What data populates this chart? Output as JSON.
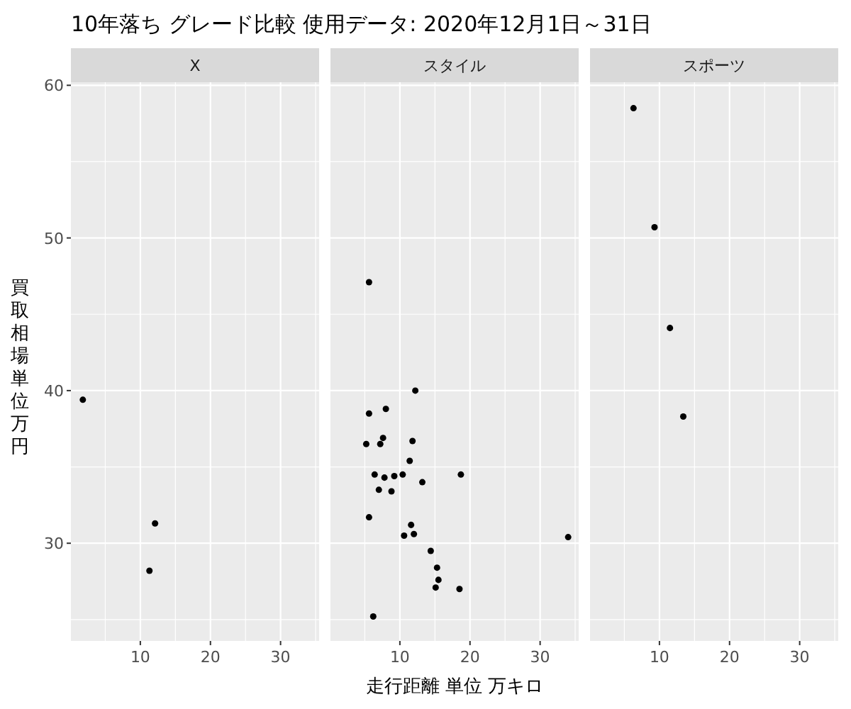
{
  "chart_data": [
    {
      "type": "scatter",
      "title": "10年落ち グレード比較 使用データ: 2020年12月1日～31日",
      "subtitle": "X",
      "ylabel": "買取相場単位万円",
      "x": [
        1.8,
        12.1,
        11.3
      ],
      "values": [
        39.4,
        31.3,
        28.2
      ],
      "color": "#000000",
      "xlim": [
        0.1,
        35.5
      ],
      "ylim": [
        23.6,
        60.2
      ],
      "xticks": [
        10,
        20,
        30
      ],
      "yticks": [
        30,
        40,
        50,
        60
      ],
      "grid": true,
      "marker": "circle"
    },
    {
      "type": "scatter",
      "subtitle": "スタイル",
      "xlabel": "走行距離 単位 万キロ",
      "x": [
        5.6,
        12.2,
        5.6,
        8.0,
        7.6,
        5.2,
        7.2,
        11.8,
        11.4,
        6.4,
        7.8,
        9.2,
        10.4,
        18.7,
        13.2,
        7.0,
        8.8,
        5.6,
        11.6,
        10.6,
        12.0,
        34.0,
        14.4,
        15.3,
        15.5,
        15.1,
        18.5,
        6.2
      ],
      "values": [
        47.1,
        40.0,
        38.5,
        38.8,
        36.9,
        36.5,
        36.5,
        36.7,
        35.4,
        34.5,
        34.3,
        34.4,
        34.5,
        34.5,
        34.0,
        33.5,
        33.4,
        31.7,
        31.2,
        30.5,
        30.6,
        30.4,
        29.5,
        28.4,
        27.6,
        27.1,
        27.0,
        25.2
      ],
      "color": "#000000",
      "xlim": [
        0.1,
        35.5
      ],
      "ylim": [
        23.6,
        60.2
      ],
      "xticks": [
        10,
        20,
        30
      ],
      "yticks": [
        30,
        40,
        50,
        60
      ],
      "grid": true,
      "marker": "circle",
      "tick_labels": "x"
    },
    {
      "type": "scatter",
      "subtitle": "スポーツ",
      "x": [
        6.3,
        9.3,
        11.5,
        13.4
      ],
      "values": [
        58.5,
        50.7,
        44.1,
        38.3
      ],
      "color": "#000000",
      "xlim": [
        0.1,
        35.5
      ],
      "ylim": [
        23.6,
        60.2
      ],
      "xticks": [
        10,
        20,
        30
      ],
      "yticks": [
        30,
        40,
        50,
        60
      ],
      "grid": true,
      "marker": "circle",
      "tick_labels": "x"
    }
  ]
}
